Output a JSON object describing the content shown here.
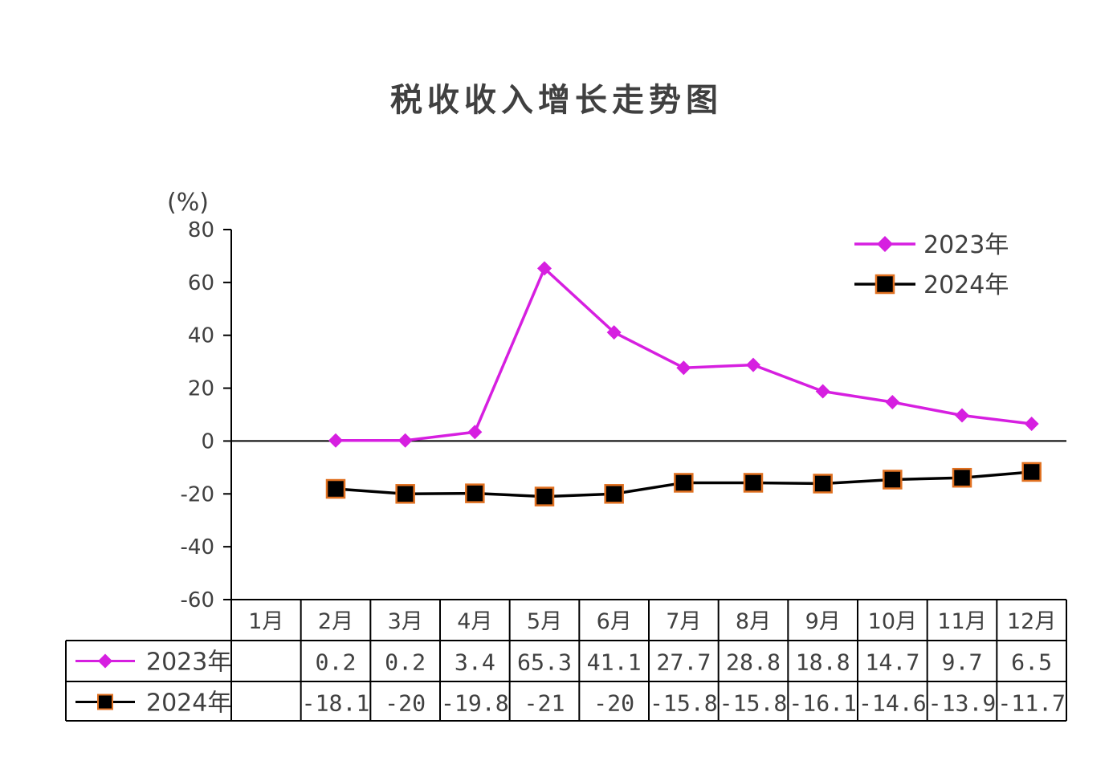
{
  "chart_data": {
    "type": "line",
    "title": "税收收入增长走势图",
    "ylabel": "(%)",
    "ylim": [
      -60,
      80
    ],
    "yticks": [
      "80",
      "60",
      "40",
      "20",
      "0",
      "-20",
      "-40",
      "-60"
    ],
    "categories": [
      "1月",
      "2月",
      "3月",
      "4月",
      "5月",
      "6月",
      "7月",
      "8月",
      "9月",
      "10月",
      "11月",
      "12月"
    ],
    "legend_position": "top-right",
    "grid": false,
    "series": [
      {
        "name": "2023年",
        "color": "#D61FE0",
        "marker": "diamond",
        "values": [
          null,
          0.2,
          0.2,
          3.4,
          65.3,
          41.1,
          27.7,
          28.8,
          18.8,
          14.7,
          9.7,
          6.5
        ],
        "labels": [
          "",
          "0.2",
          "0.2",
          "3.4",
          "65.3",
          "41.1",
          "27.7",
          "28.8",
          "18.8",
          "14.7",
          "9.7",
          "6.5"
        ]
      },
      {
        "name": "2024年",
        "color": "#000000",
        "marker_edge": "#E07020",
        "marker": "square",
        "values": [
          null,
          -18.1,
          -20,
          -19.8,
          -21,
          -20,
          -15.8,
          -15.8,
          -16.1,
          -14.6,
          -13.9,
          -11.7
        ],
        "labels": [
          "",
          "-18.1",
          "-20",
          "-19.8",
          "-21",
          "-20",
          "-15.8",
          "-15.8",
          "-16.1",
          "-14.6",
          "-13.9",
          "-11.7"
        ]
      }
    ]
  }
}
